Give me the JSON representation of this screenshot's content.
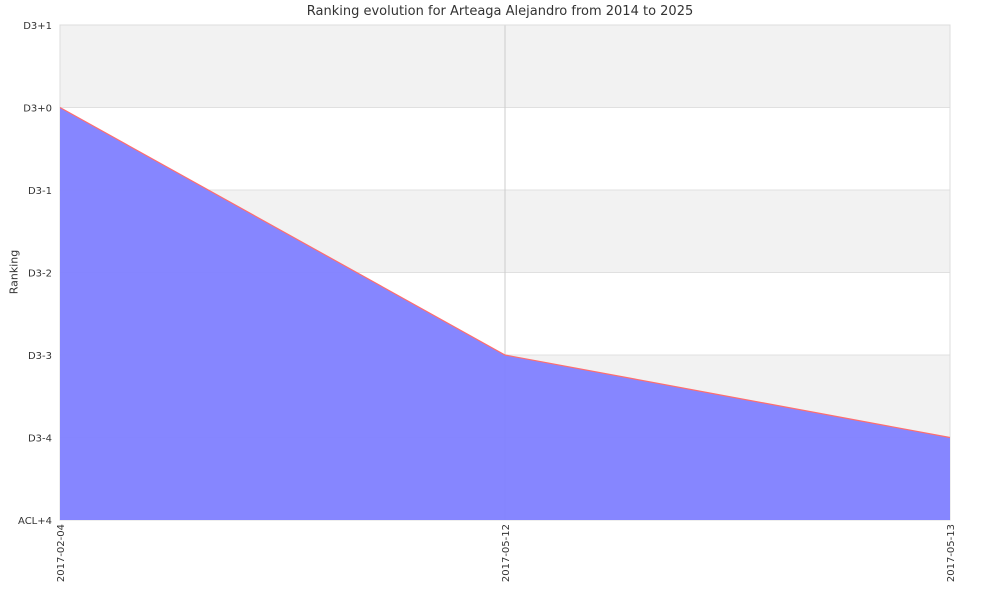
{
  "chart_data": {
    "type": "area",
    "title": "Ranking evolution for Arteaga Alejandro from 2014 to 2025",
    "xlabel": "",
    "ylabel": "Ranking",
    "categories": [
      "2017-02-04",
      "2017-05-12",
      "2017-05-13"
    ],
    "y_ticks": [
      "D3+1",
      "D3+0",
      "D3-1",
      "D3-2",
      "D3-3",
      "D3-4",
      "ACL+4"
    ],
    "series": [
      {
        "values": [
          "D3+0",
          "D3-3",
          "D3-4"
        ]
      }
    ],
    "grid": true,
    "colors": {
      "fill": "#8080ff",
      "line": "#ff6e6e",
      "band": "#f2f2f2",
      "grid": "#cccccc"
    }
  }
}
